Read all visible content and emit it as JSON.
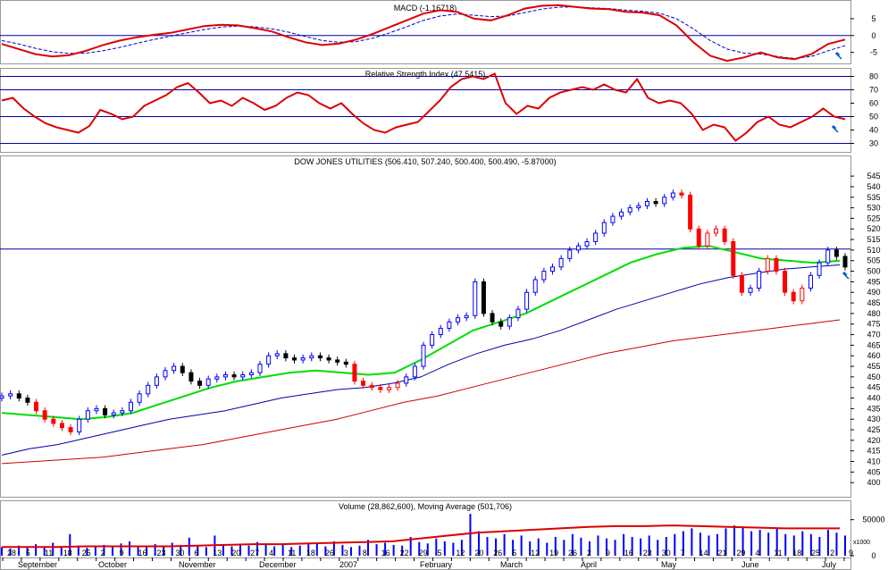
{
  "chart_data": {
    "type": "stock-chart",
    "colors": {
      "price_up": "#0000ff",
      "price_down": "#000000",
      "price_highlight": "#ff0000",
      "ma_short": "#00dd00",
      "ma_mid": "#0000aa",
      "ma_long": "#cc0000",
      "macd_line": "#dd0000",
      "macd_signal": "#0000cc",
      "rsi_line": "#dd0000",
      "ref_lines": "#0000aa",
      "volume_bars": "#0000ff",
      "volume_ma": "#dd0000",
      "arrow": "#0055cc"
    },
    "panels": {
      "macd": {
        "title": "MACD (-1.16718)",
        "ylim": [
          -8,
          10
        ],
        "ticks": [
          5,
          0,
          -5
        ],
        "reference_lines": [
          0
        ],
        "line": [
          -2.5,
          -4.0,
          -5.5,
          -6.2,
          -5.8,
          -4.5,
          -2.8,
          -1.5,
          -0.5,
          0.2,
          0.8,
          1.8,
          2.8,
          3.2,
          3.0,
          2.2,
          1.2,
          -0.5,
          -2.0,
          -2.8,
          -2.4,
          -1.2,
          0.5,
          2.5,
          4.5,
          6.5,
          7.5,
          7.0,
          5.0,
          4.5,
          6.0,
          8.0,
          8.8,
          9.0,
          8.5,
          8.0,
          7.8,
          7.0,
          6.8,
          6.0,
          3.0,
          -2.0,
          -6.0,
          -7.5,
          -6.5,
          -5.0,
          -6.5,
          -7.0,
          -5.5,
          -2.5,
          -1.2
        ],
        "signal": [
          -1.5,
          -2.5,
          -3.8,
          -4.8,
          -5.3,
          -5.2,
          -4.5,
          -3.5,
          -2.3,
          -1.2,
          -0.2,
          0.8,
          1.8,
          2.5,
          2.8,
          2.6,
          2.0,
          1.0,
          -0.3,
          -1.5,
          -2.0,
          -1.8,
          -0.8,
          0.8,
          2.6,
          4.5,
          5.8,
          6.4,
          6.0,
          5.6,
          5.8,
          6.8,
          7.8,
          8.4,
          8.5,
          8.2,
          8.0,
          7.5,
          7.2,
          6.6,
          5.0,
          2.0,
          -1.5,
          -4.0,
          -5.2,
          -5.5,
          -6.2,
          -6.8,
          -6.2,
          -4.5,
          -3.0
        ]
      },
      "rsi": {
        "title": "Relative Strength Index (47.5415)",
        "ylim": [
          25,
          85
        ],
        "ticks": [
          80,
          70,
          60,
          50,
          40,
          30
        ],
        "reference_lines": [
          80,
          70,
          50,
          30
        ],
        "values": [
          62,
          64,
          56,
          50,
          45,
          42,
          40,
          38,
          43,
          55,
          52,
          48,
          50,
          58,
          62,
          66,
          72,
          75,
          68,
          60,
          62,
          58,
          64,
          60,
          55,
          58,
          64,
          68,
          66,
          60,
          56,
          60,
          52,
          45,
          40,
          38,
          42,
          44,
          46,
          54,
          62,
          72,
          78,
          80,
          78,
          82,
          60,
          52,
          58,
          56,
          64,
          68,
          70,
          72,
          70,
          74,
          70,
          68,
          78,
          64,
          60,
          62,
          60,
          52,
          40,
          44,
          42,
          32,
          38,
          46,
          50,
          44,
          42,
          46,
          50,
          56,
          50,
          48
        ]
      },
      "price": {
        "title": "DOW JONES UTILITIES (506.410, 507.240, 500.400, 500.490, -5.87000)",
        "ylim": [
          395,
          548
        ],
        "ticks": [
          545,
          540,
          535,
          530,
          525,
          520,
          515,
          510,
          505,
          500,
          495,
          490,
          485,
          480,
          475,
          470,
          465,
          460,
          455,
          450,
          445,
          440,
          435,
          430,
          425,
          420,
          415,
          410,
          405,
          400
        ],
        "reference_lines": [
          510.5
        ],
        "candles": [
          441,
          442,
          440,
          438,
          434,
          430,
          428,
          426,
          424,
          430,
          434,
          435,
          432,
          433,
          434,
          438,
          442,
          446,
          450,
          453,
          455,
          452,
          448,
          446,
          449,
          450,
          451,
          450,
          451,
          452,
          456,
          460,
          461,
          459,
          458,
          459,
          460,
          459,
          458,
          457,
          456,
          448,
          446,
          445,
          444,
          445,
          447,
          450,
          455,
          465,
          470,
          473,
          476,
          478,
          479,
          495,
          480,
          476,
          474,
          478,
          482,
          490,
          496,
          500,
          502,
          506,
          510,
          512,
          514,
          518,
          523,
          526,
          528,
          530,
          531,
          533,
          532,
          535,
          537,
          536,
          520,
          512,
          518,
          520,
          514,
          498,
          490,
          492,
          500,
          506,
          500,
          490,
          486,
          492,
          498,
          504,
          510,
          507,
          502
        ],
        "highlight_ranges": [
          [
            4,
            8
          ],
          [
            41,
            46
          ],
          [
            79,
            86
          ],
          [
            89,
            93
          ]
        ],
        "ma_short": [
          433,
          432,
          431,
          430,
          431,
          433,
          437,
          441,
          445,
          448,
          450,
          452,
          453,
          452,
          451,
          452,
          458,
          465,
          472,
          476,
          480,
          486,
          492,
          498,
          504,
          508,
          511,
          512,
          509,
          506,
          505,
          504,
          505
        ],
        "ma_mid": [
          413,
          416,
          418,
          421,
          424,
          427,
          430,
          432,
          434,
          437,
          440,
          442,
          444,
          445,
          447,
          450,
          456,
          461,
          465,
          468,
          472,
          477,
          482,
          486,
          490,
          494,
          497,
          499,
          501,
          502,
          503
        ],
        "ma_long": [
          409,
          410,
          411,
          412,
          414,
          416,
          418,
          421,
          424,
          427,
          430,
          434,
          438,
          441,
          445,
          449,
          453,
          457,
          461,
          464,
          467,
          469,
          471,
          473,
          475,
          477
        ]
      },
      "volume": {
        "title": "Volume (28,862,600), Moving Average (501,706)",
        "ylim": [
          0,
          62000
        ],
        "ticks": [
          50000,
          0
        ],
        "multiplier_label": "x1000",
        "bars": [
          12,
          10,
          14,
          11,
          16,
          13,
          18,
          12,
          30,
          14,
          11,
          13,
          15,
          12,
          17,
          20,
          14,
          12,
          16,
          13,
          18,
          15,
          25,
          14,
          12,
          28,
          16,
          13,
          15,
          14,
          19,
          17,
          13,
          15,
          12,
          14,
          16,
          18,
          13,
          20,
          15,
          12,
          14,
          22,
          16,
          18,
          15,
          14,
          26,
          19,
          17,
          24,
          20,
          18,
          22,
          58,
          34,
          26,
          24,
          30,
          22,
          28,
          20,
          24,
          18,
          26,
          22,
          30,
          25,
          20,
          28,
          24,
          22,
          30,
          26,
          24,
          28,
          22,
          26,
          30,
          34,
          38,
          32,
          28,
          30,
          38,
          42,
          40,
          34,
          36,
          32,
          38,
          30,
          28,
          34,
          30,
          26,
          36,
          32,
          28
        ],
        "moving_average": [
          12,
          12,
          12,
          13,
          13,
          13,
          13,
          14,
          15,
          16,
          16,
          17,
          18,
          19,
          20,
          24,
          28,
          32,
          34,
          36,
          38,
          40,
          41,
          41,
          42,
          41,
          40,
          39,
          38,
          38,
          38
        ]
      }
    },
    "x_axis": {
      "tick_labels": [
        "28",
        "5",
        "11",
        "18",
        "25",
        "2",
        "9",
        "16",
        "23",
        "30",
        "6",
        "13",
        "20",
        "27",
        "4",
        "11",
        "18",
        "26",
        "3",
        "8",
        "16",
        "22",
        "29",
        "5",
        "12",
        "20",
        "26",
        "5",
        "12",
        "19",
        "26",
        "2",
        "9",
        "16",
        "23",
        "30",
        "7",
        "14",
        "21",
        "29",
        "4",
        "11",
        "18",
        "25",
        "2",
        "9"
      ],
      "month_labels": [
        "September",
        "October",
        "November",
        "December",
        "2007",
        "February",
        "March",
        "April",
        "May",
        "June",
        "July"
      ]
    }
  }
}
